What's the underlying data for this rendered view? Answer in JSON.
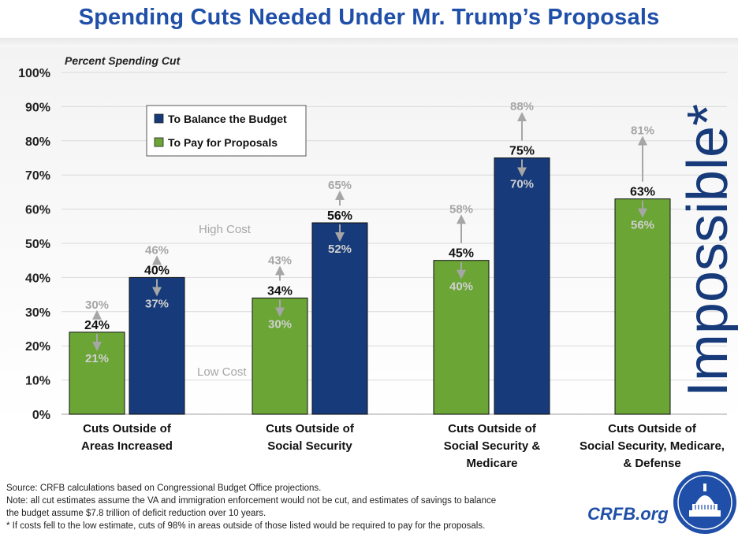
{
  "header": {
    "title": "Spending Cuts Needed Under Mr. Trump’s Proposals"
  },
  "chart_data": {
    "type": "bar",
    "ylabel": "Percent Spending Cut",
    "ylim": [
      0,
      100
    ],
    "yticks": [
      "0%",
      "10%",
      "20%",
      "30%",
      "40%",
      "50%",
      "60%",
      "70%",
      "80%",
      "90%",
      "100%"
    ],
    "categories": [
      [
        "Cuts Outside of",
        "Areas Increased"
      ],
      [
        "Cuts Outside of",
        "Social Security"
      ],
      [
        "Cuts Outside of",
        "Social Security &",
        "Medicare"
      ],
      [
        "Cuts Outside of",
        "Social Security, Medicare,",
        "& Defense"
      ]
    ],
    "series": [
      {
        "name": "To Pay for Proposals",
        "color": "#6aa535",
        "values": [
          24,
          34,
          45,
          63
        ],
        "labels": [
          "24%",
          "34%",
          "45%",
          "63%"
        ],
        "high": [
          30,
          43,
          58,
          81
        ],
        "high_labels": [
          "30%",
          "43%",
          "58%",
          "81%"
        ],
        "low": [
          21,
          30,
          40,
          56
        ],
        "low_labels": [
          "21%",
          "30%",
          "40%",
          "56%"
        ]
      },
      {
        "name": "To Balance the Budget",
        "color": "#173a7a",
        "values": [
          40,
          56,
          75,
          null
        ],
        "labels": [
          "40%",
          "56%",
          "75%",
          null
        ],
        "high": [
          46,
          65,
          88,
          null
        ],
        "high_labels": [
          "46%",
          "65%",
          "88%",
          null
        ],
        "low": [
          37,
          52,
          70,
          null
        ],
        "low_labels": [
          "37%",
          "52%",
          "70%",
          null
        ]
      }
    ],
    "legend": [
      "To Balance the Budget",
      "To Pay for Proposals"
    ],
    "legend_position": "top-left",
    "annotations": {
      "high_cost": "High Cost",
      "low_cost": "Low Cost",
      "impossible": "Impossible*"
    },
    "grid": true
  },
  "footer": {
    "source": "Source: CRFB calculations based on Congressional Budget Office projections.",
    "note1": "Note: all cut estimates assume the VA and immigration enforcement would not be cut, and estimates of savings to balance",
    "note2": "the budget assume $7.8 trillion of deficit reduction over 10 years.",
    "footnote": "* If costs fell to the low estimate, cuts of 98% in areas outside of those listed would be required to pay for the proposals.",
    "site": "CRFB.org"
  }
}
